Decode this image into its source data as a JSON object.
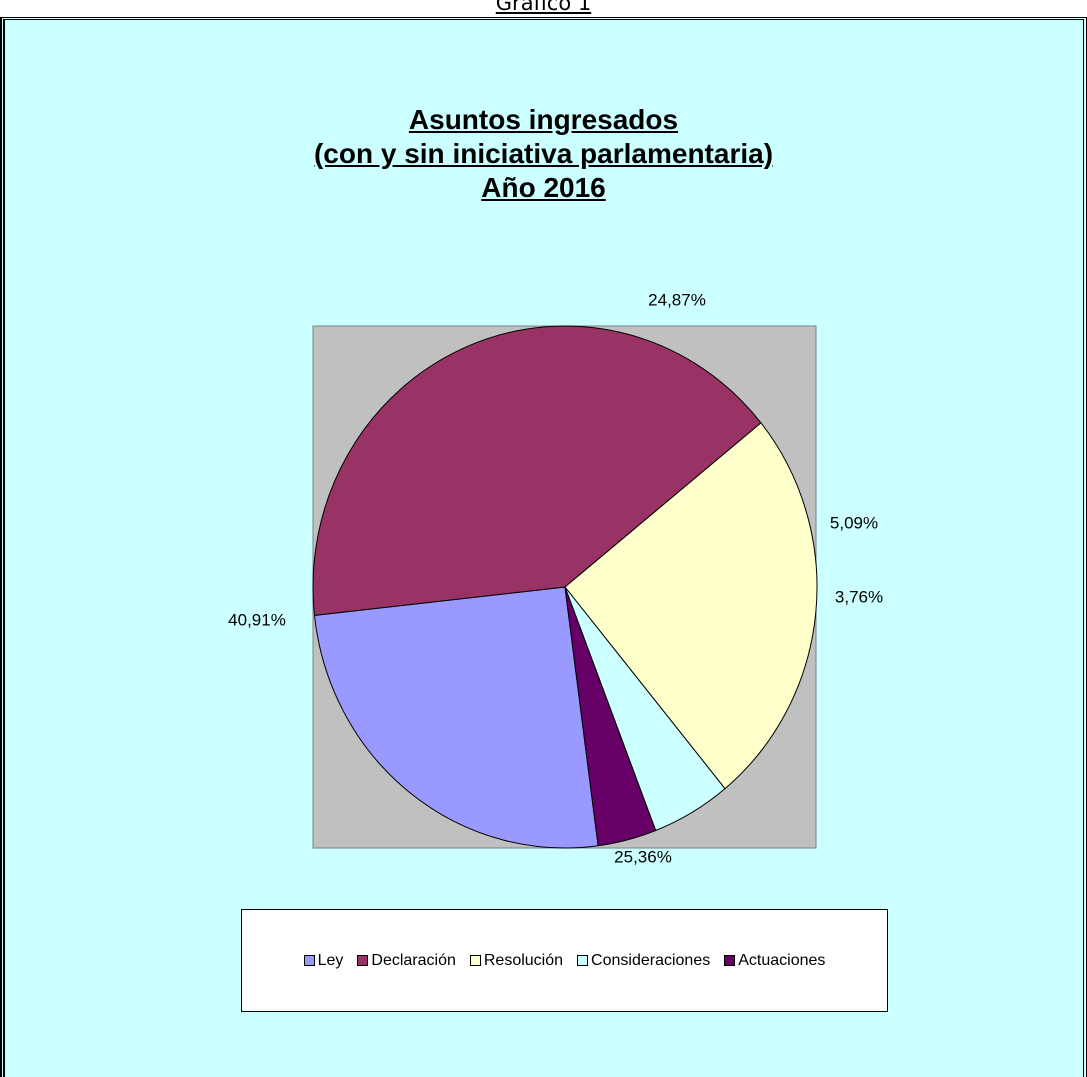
{
  "caption": "Gráfico 1",
  "chart_data": {
    "type": "pie",
    "title_lines": [
      "Asuntos ingresados",
      "(con y sin iniciativa parlamentaria)",
      "Año 2016"
    ],
    "categories": [
      "Ley",
      "Declaración",
      "Resolución",
      "Consideraciones",
      "Actuaciones"
    ],
    "values": [
      25.36,
      40.91,
      24.87,
      5.09,
      3.76
    ],
    "labels": [
      "25,36%",
      "40,91%",
      "24,87%",
      "5,09%",
      "3,76%"
    ],
    "colors": [
      "#9999ff",
      "#993366",
      "#ffffcc",
      "#ccffff",
      "#660066"
    ],
    "legend_position": "bottom",
    "plot_background": "#c0c0c0",
    "chart_background": "#ccffff"
  }
}
